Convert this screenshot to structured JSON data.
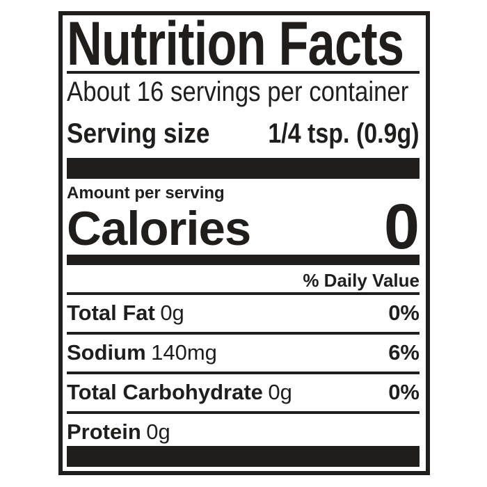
{
  "label": {
    "title": "Nutrition Facts",
    "servings_per_container": "About 16 servings per container",
    "serving_size": {
      "label": "Serving size",
      "value": "1/4 tsp. (0.9g)"
    },
    "amount_per_serving_label": "Amount per serving",
    "calories": {
      "label": "Calories",
      "value": "0"
    },
    "daily_value_header": "% Daily Value",
    "nutrients": [
      {
        "name": "Total Fat",
        "amount": "0g",
        "daily_value": "0%"
      },
      {
        "name": "Sodium",
        "amount": "140mg",
        "daily_value": "6%"
      },
      {
        "name": "Total Carbohydrate",
        "amount": "0g",
        "daily_value": "0%"
      },
      {
        "name": "Protein",
        "amount": "0g",
        "daily_value": ""
      }
    ],
    "colors": {
      "ink": "#1f1e1d",
      "background": "#ffffff"
    }
  }
}
